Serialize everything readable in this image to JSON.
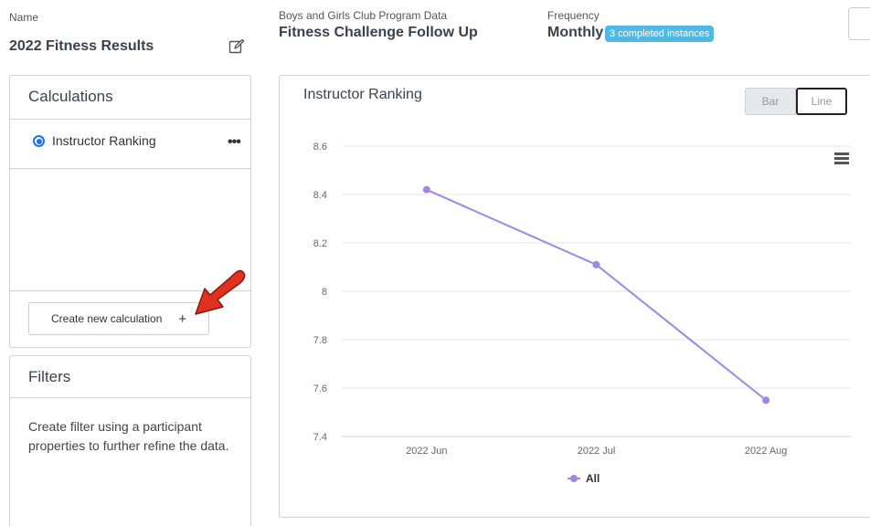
{
  "header": {
    "name_label": "Name",
    "name_value": "2022 Fitness Results",
    "source_label": "Boys and Girls Club Program Data",
    "source_value": "Fitness Challenge Follow Up",
    "frequency_label": "Frequency",
    "frequency_value": "Monthly",
    "frequency_badge": "3 completed instances"
  },
  "calculations": {
    "title": "Calculations",
    "items": [
      {
        "label": "Instructor Ranking",
        "selected": true
      }
    ],
    "more_label": "•••",
    "create_button_label": "Create new calculation",
    "create_button_icon": "+"
  },
  "filters": {
    "title": "Filters",
    "description": "Create filter using a participant properties to further refine the data."
  },
  "chart_panel": {
    "title": "Instructor Ranking",
    "toggle_bar": "Bar",
    "toggle_line": "Line",
    "active_toggle": "Line"
  },
  "colors": {
    "series": "#9f86e0",
    "badge": "#4fb9e3",
    "annotation_arrow": "#e0301e"
  },
  "chart_data": {
    "type": "line",
    "title": "Instructor Ranking",
    "categories": [
      "2022 Jun",
      "2022 Jul",
      "2022 Aug"
    ],
    "series": [
      {
        "name": "All",
        "values": [
          8.42,
          8.11,
          7.55
        ]
      }
    ],
    "ylim": [
      7.4,
      8.6
    ],
    "yticks": [
      "8.6",
      "8.4",
      "8.2",
      "8",
      "7.8",
      "7.6",
      "7.4"
    ],
    "grid": true,
    "legend_position": "bottom"
  }
}
